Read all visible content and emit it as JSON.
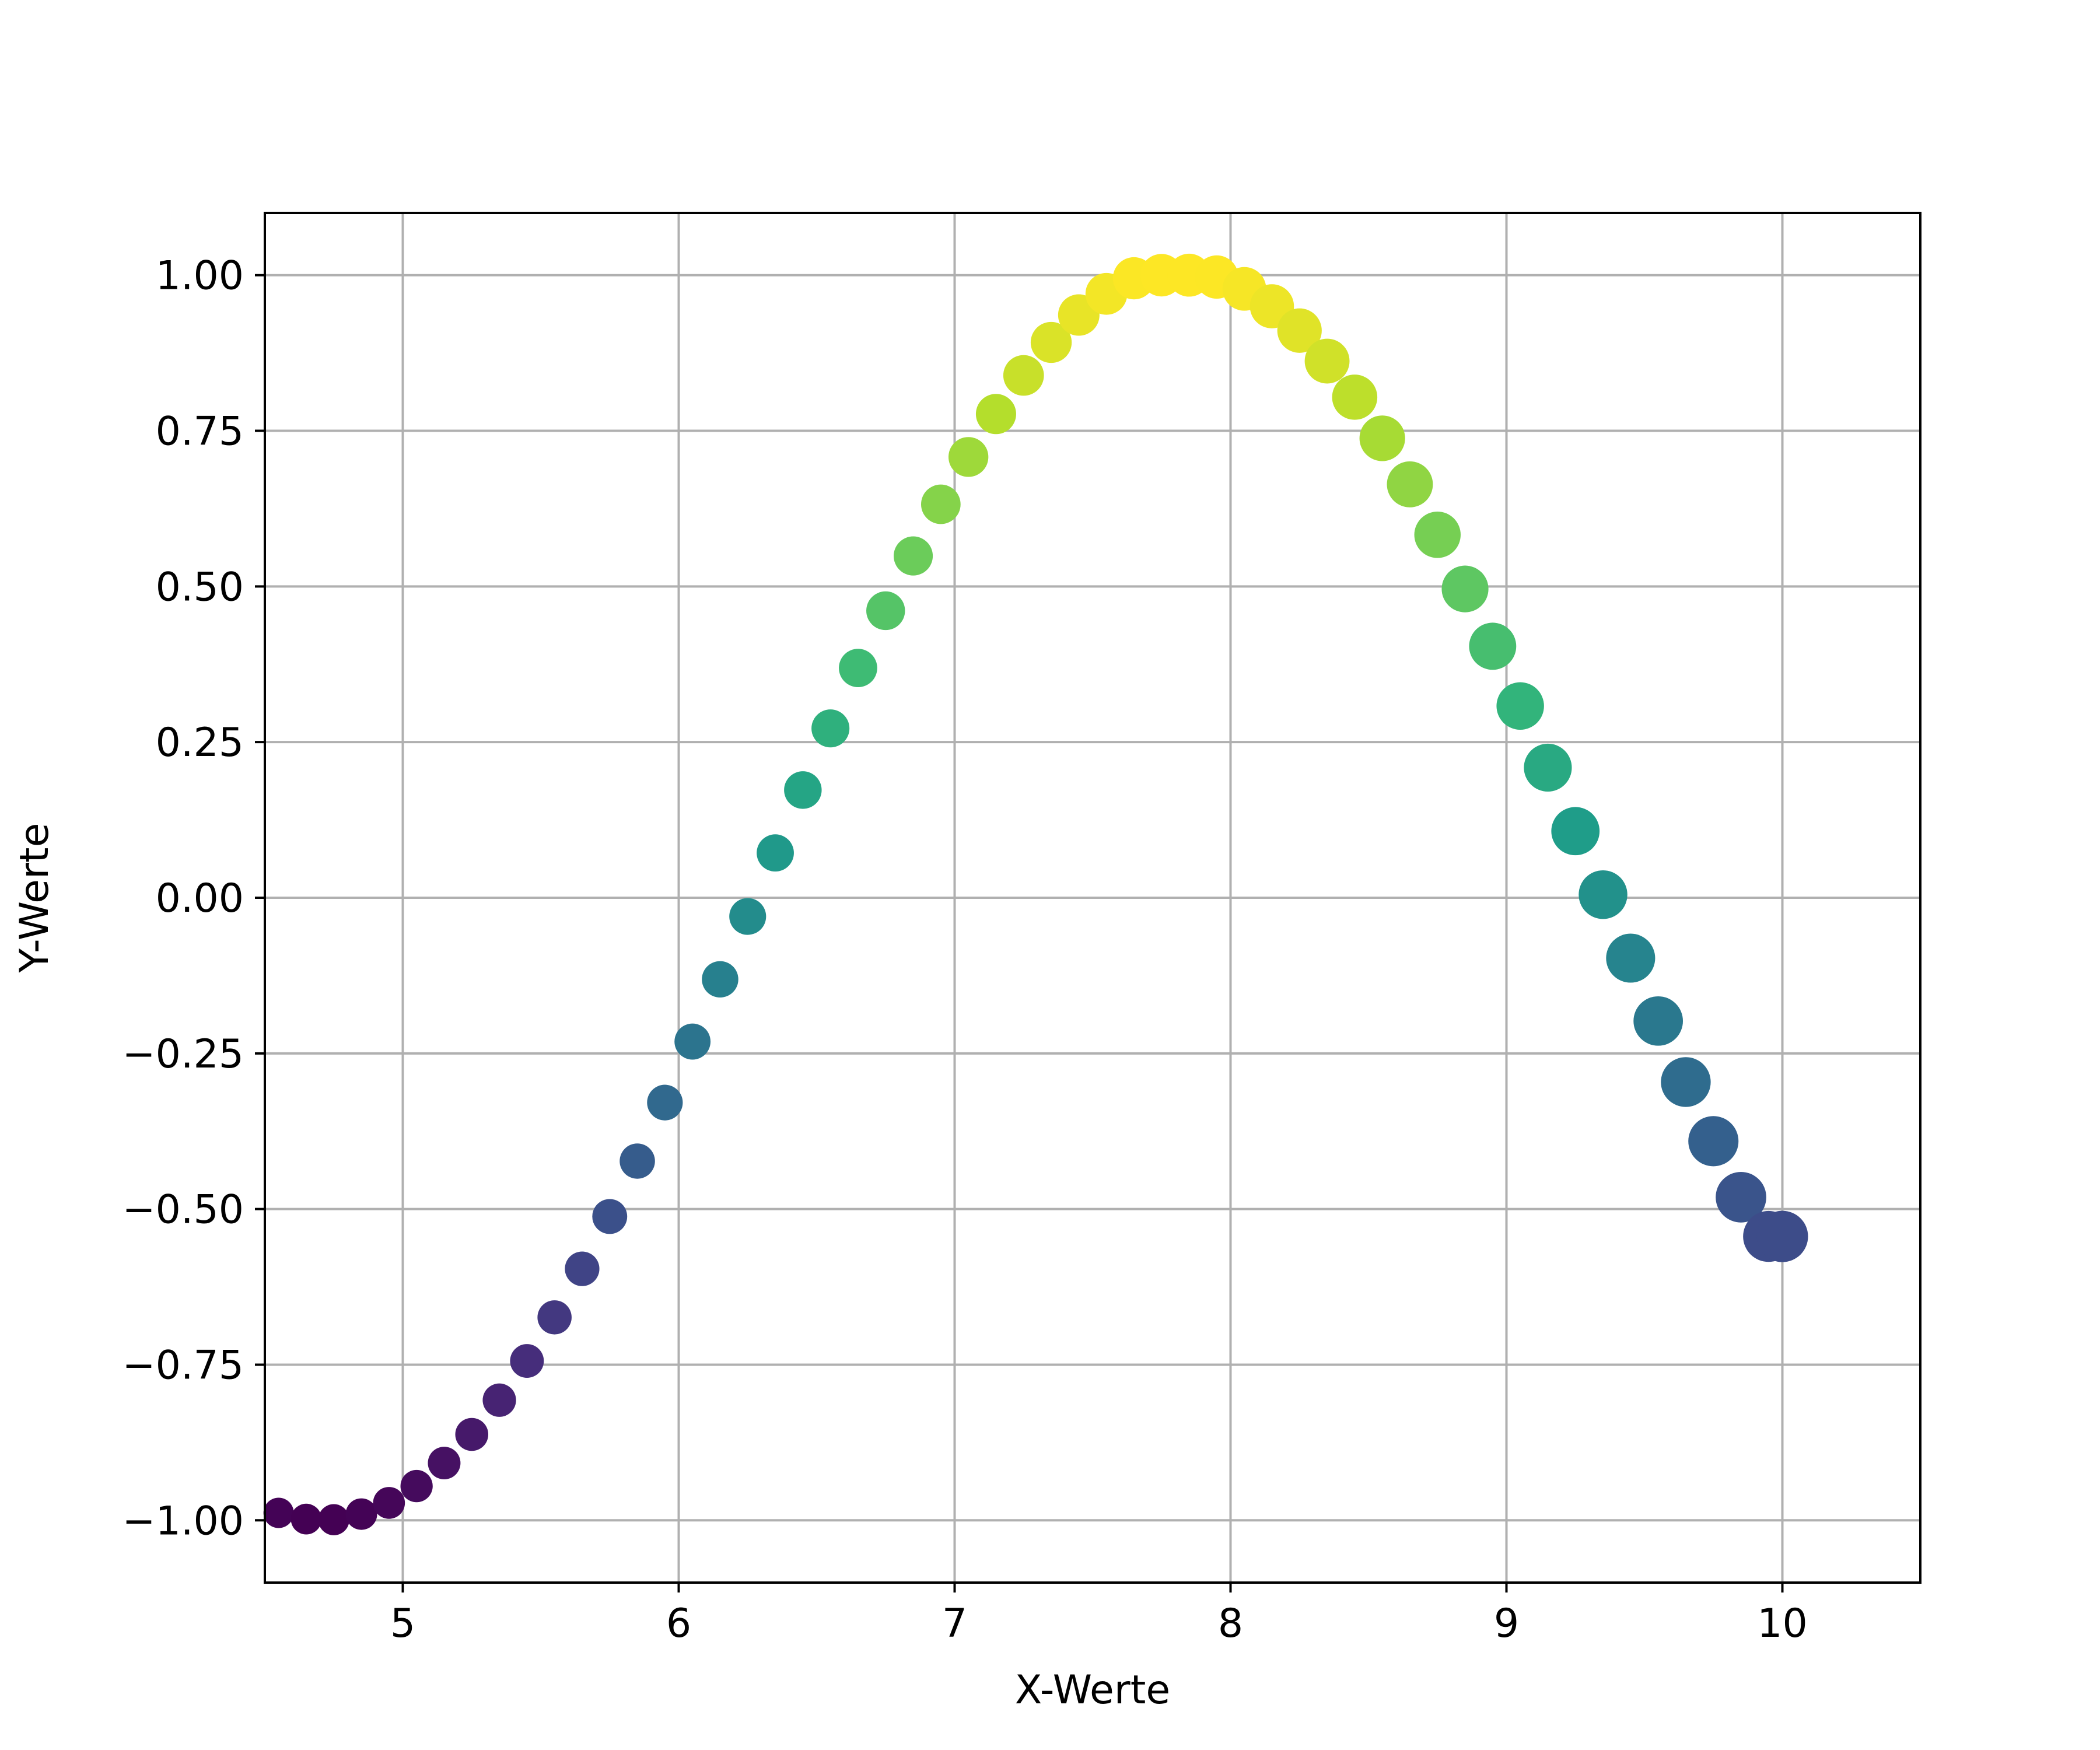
{
  "chart_data": {
    "type": "scatter",
    "title": "",
    "xlabel": "X-Werte",
    "ylabel": "Y-Werte",
    "xlim": [
      4.5,
      10.5
    ],
    "ylim": [
      -1.1,
      1.1
    ],
    "grid": true,
    "colormap": "viridis",
    "x_ticks": [
      5,
      6,
      7,
      8,
      9,
      10
    ],
    "x_tick_labels": [
      "5",
      "6",
      "7",
      "8",
      "9",
      "10"
    ],
    "y_ticks": [
      1.0,
      0.75,
      0.5,
      0.25,
      0.0,
      -0.25,
      -0.5,
      -0.75,
      -1.0
    ],
    "y_tick_labels": [
      "1.00",
      "0.75",
      "0.50",
      "0.25",
      "0.00",
      "−0.25",
      "−0.50",
      "−0.75",
      "−1.00"
    ],
    "x": [
      4.55,
      4.65,
      4.75,
      4.85,
      4.95,
      5.05,
      5.15,
      5.25,
      5.35,
      5.45,
      5.55,
      5.65,
      5.75,
      5.85,
      5.95,
      6.05,
      6.15,
      6.25,
      6.35,
      6.45,
      6.55,
      6.65,
      6.75,
      6.85,
      6.95,
      7.05,
      7.15,
      7.25,
      7.35,
      7.45,
      7.55,
      7.65,
      7.75,
      7.85,
      7.95,
      8.05,
      8.15,
      8.25,
      8.35,
      8.45,
      8.55,
      8.65,
      8.75,
      8.85,
      8.95,
      9.05,
      9.15,
      9.25,
      9.35,
      9.45,
      9.55,
      9.65,
      9.75,
      9.85,
      9.95,
      10.0
    ],
    "y": [
      -0.988,
      -0.998,
      -0.999,
      -0.99,
      -0.972,
      -0.945,
      -0.908,
      -0.862,
      -0.807,
      -0.744,
      -0.674,
      -0.596,
      -0.512,
      -0.423,
      -0.329,
      -0.231,
      -0.131,
      -0.03,
      0.072,
      0.173,
      0.272,
      0.369,
      0.461,
      0.549,
      0.632,
      0.708,
      0.777,
      0.839,
      0.892,
      0.936,
      0.97,
      0.995,
      1.0,
      1.0,
      0.997,
      0.978,
      0.95,
      0.911,
      0.862,
      0.804,
      0.738,
      0.664,
      0.583,
      0.496,
      0.404,
      0.308,
      0.209,
      0.107,
      0.005,
      -0.097,
      -0.198,
      -0.296,
      -0.391,
      -0.481,
      -0.544,
      -0.544
    ]
  }
}
